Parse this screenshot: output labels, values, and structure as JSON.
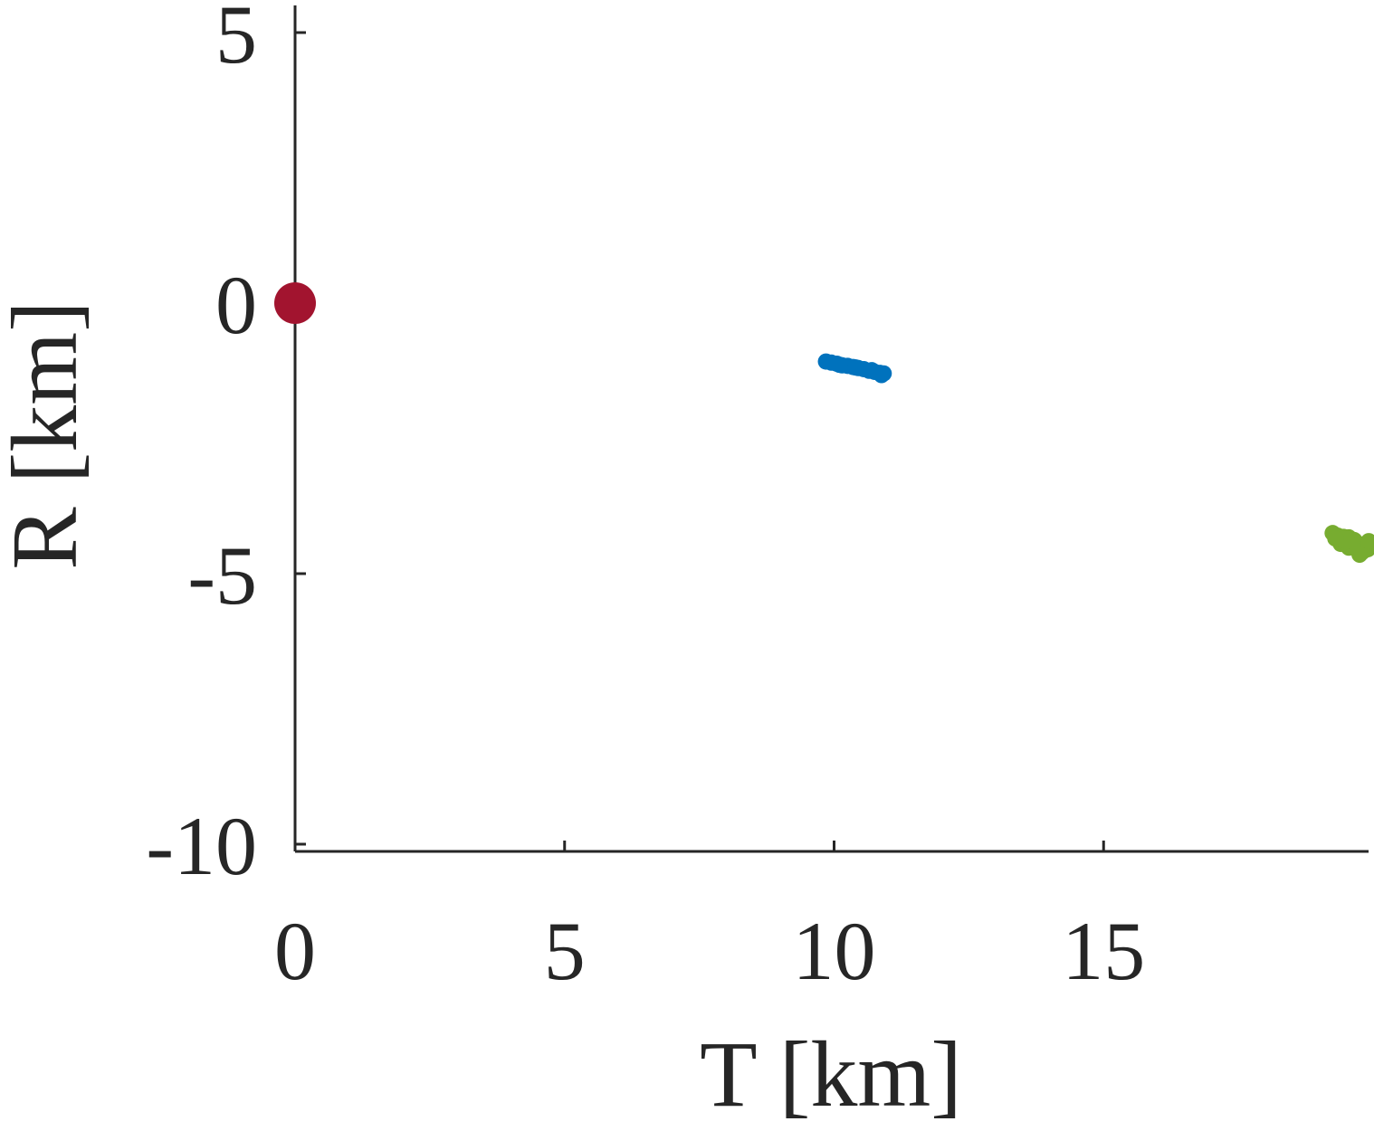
{
  "chart_data": {
    "type": "scatter",
    "title": "",
    "xlabel": "T [km]",
    "ylabel": "R [km]",
    "xlim": [
      0,
      20
    ],
    "ylim": [
      -10,
      5
    ],
    "x_ticks": [
      0,
      5,
      10,
      15
    ],
    "x_tick_labels": [
      "0",
      "5",
      "10",
      "15"
    ],
    "y_ticks": [
      5,
      0,
      -5,
      -10
    ],
    "y_tick_labels": [
      "5",
      "0",
      "-5",
      "-10"
    ],
    "grid": false,
    "legend": "none",
    "series": [
      {
        "color": "#a2142f",
        "marker": "large-circle",
        "points": [
          [
            0,
            0
          ]
        ]
      },
      {
        "color": "#0072bd",
        "marker": "dot",
        "points": [
          [
            9.85,
            -1.08
          ],
          [
            9.95,
            -1.1
          ],
          [
            10.05,
            -1.12
          ],
          [
            10.15,
            -1.15
          ],
          [
            10.25,
            -1.16
          ],
          [
            10.35,
            -1.18
          ],
          [
            10.45,
            -1.2
          ],
          [
            10.55,
            -1.22
          ],
          [
            10.65,
            -1.25
          ],
          [
            10.75,
            -1.27
          ],
          [
            10.85,
            -1.29
          ],
          [
            10.92,
            -1.3
          ],
          [
            10.1,
            -1.14
          ],
          [
            10.4,
            -1.19
          ],
          [
            10.7,
            -1.24
          ],
          [
            10.88,
            -1.33
          ]
        ]
      },
      {
        "color": "#77ac30",
        "marker": "dot",
        "points": [
          [
            19.25,
            -4.25
          ],
          [
            19.35,
            -4.3
          ],
          [
            19.45,
            -4.32
          ],
          [
            19.55,
            -4.33
          ],
          [
            19.65,
            -4.38
          ],
          [
            19.4,
            -4.45
          ],
          [
            19.55,
            -4.52
          ],
          [
            19.7,
            -4.55
          ],
          [
            19.8,
            -4.6
          ],
          [
            19.85,
            -4.45
          ],
          [
            19.9,
            -4.55
          ],
          [
            19.92,
            -4.4
          ],
          [
            19.6,
            -4.48
          ],
          [
            19.75,
            -4.65
          ],
          [
            19.5,
            -4.4
          ],
          [
            19.3,
            -4.35
          ]
        ]
      }
    ]
  }
}
